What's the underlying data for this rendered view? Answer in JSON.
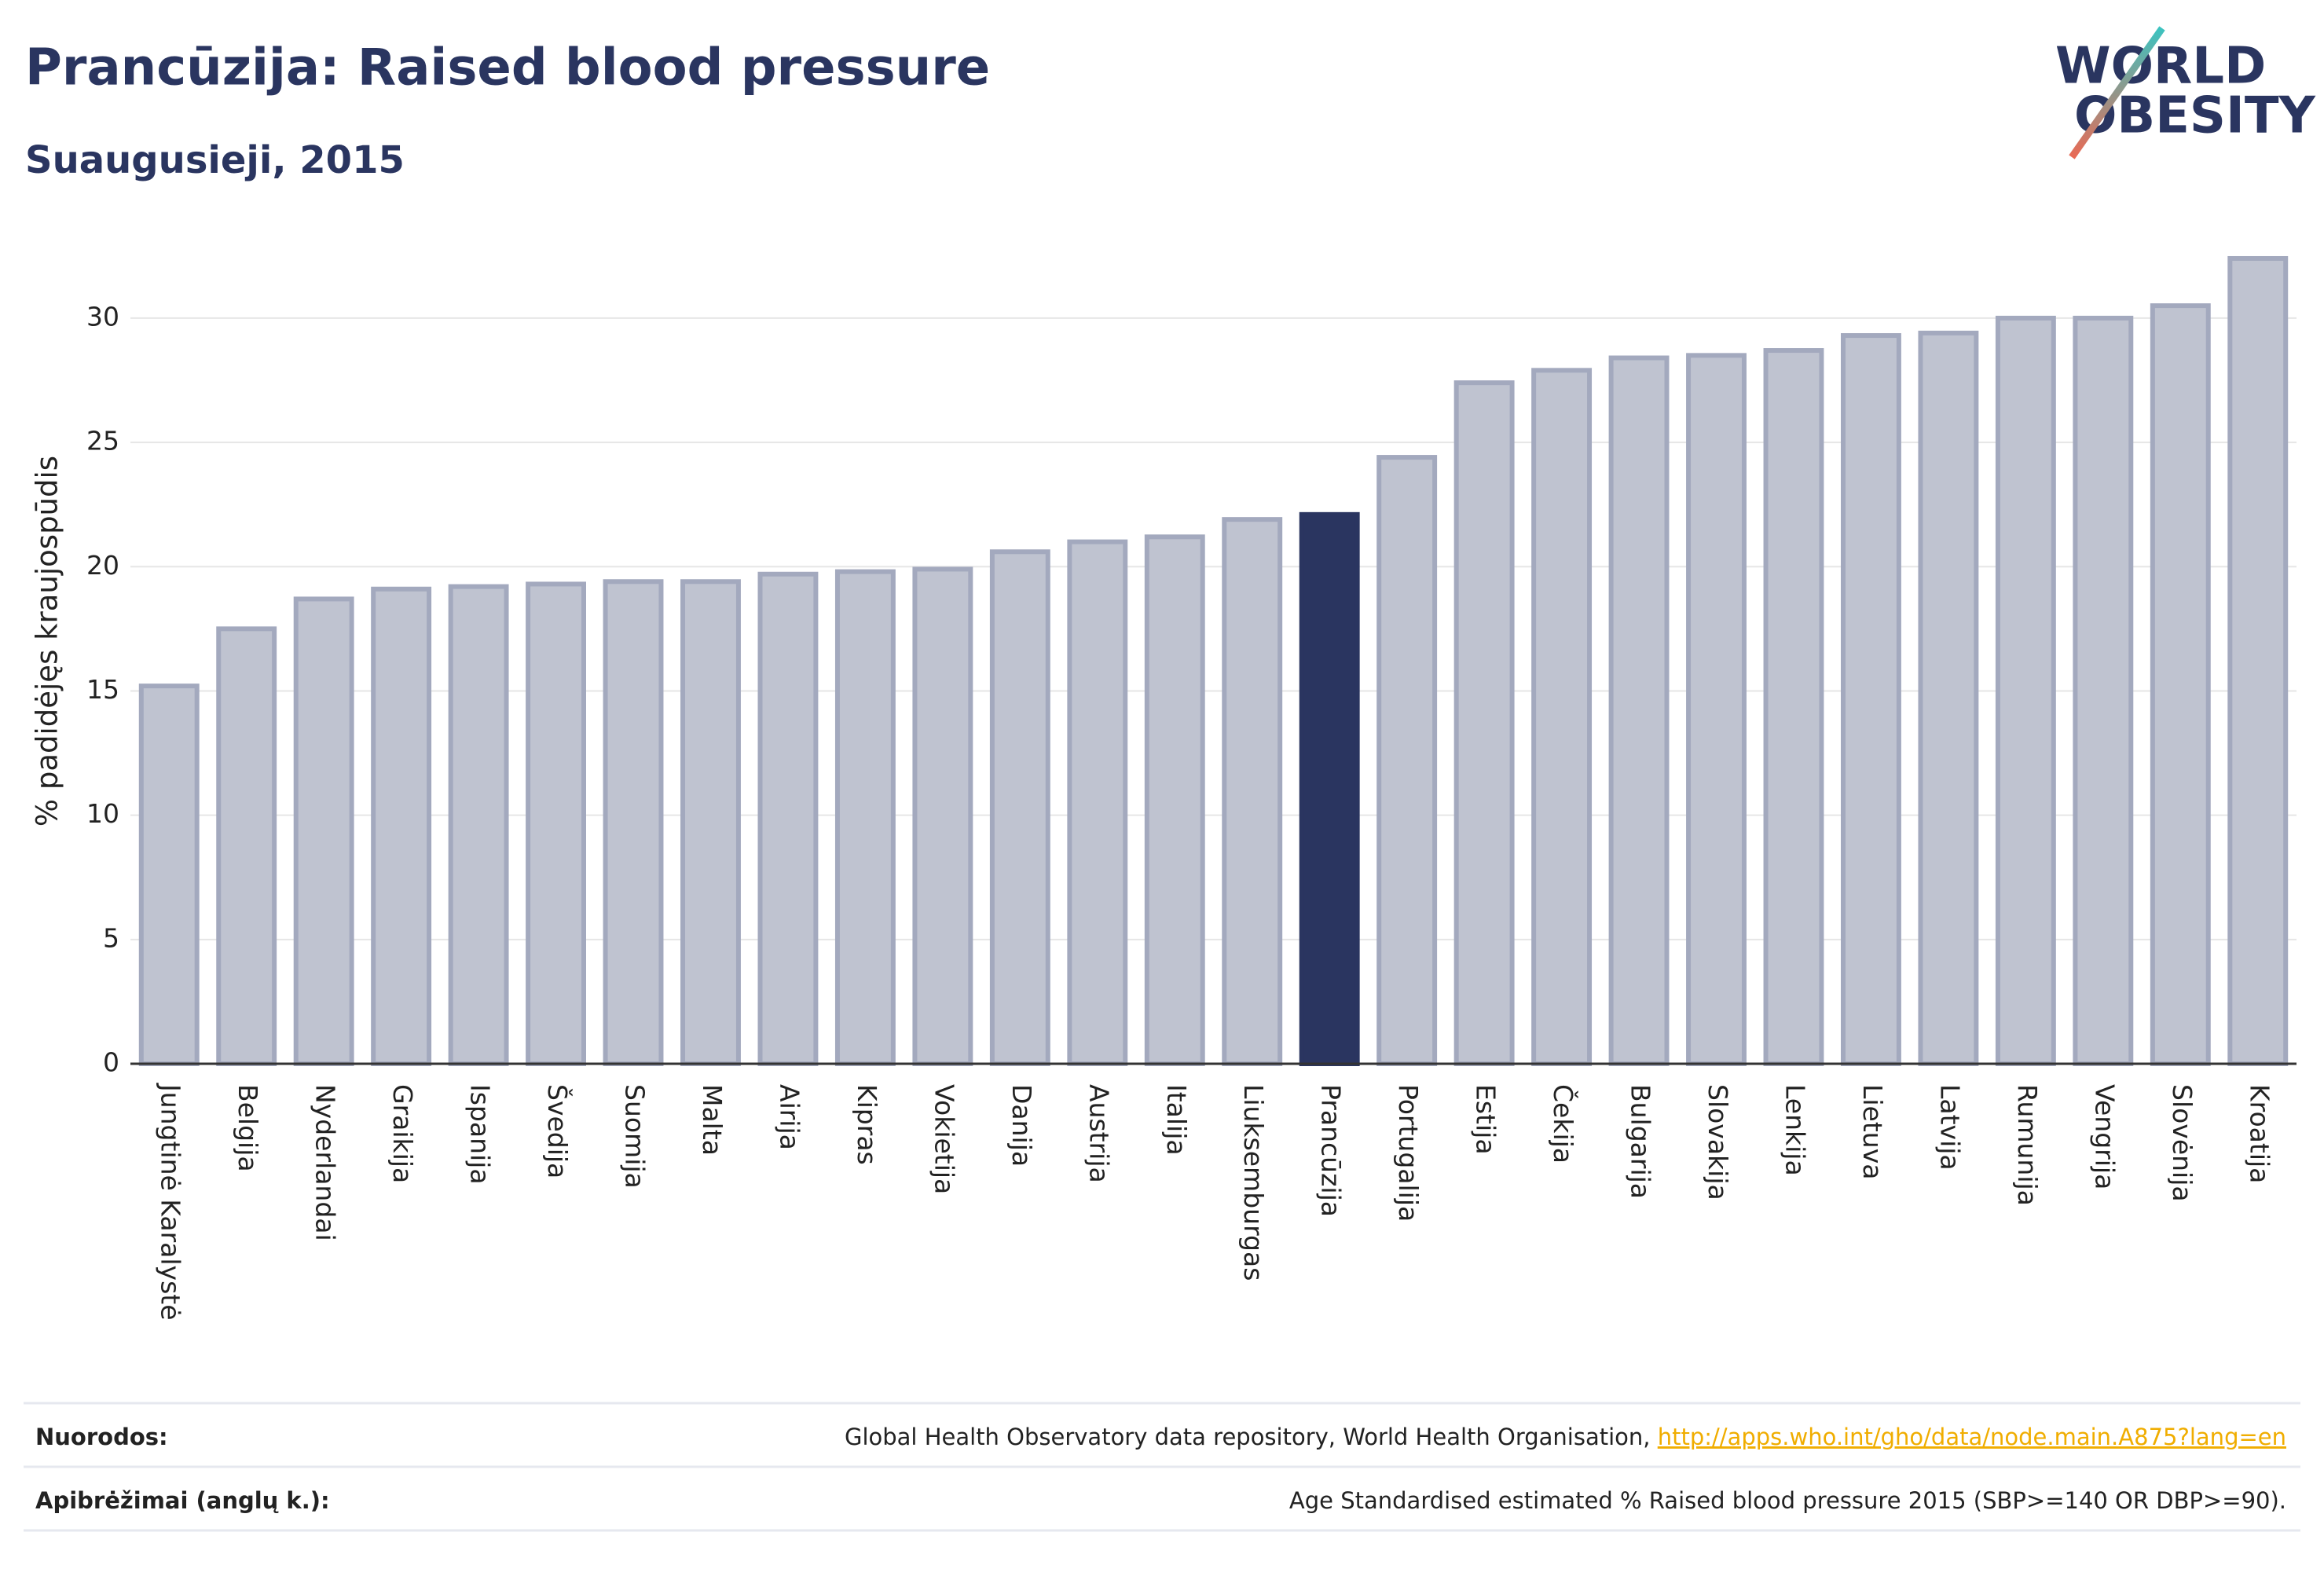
{
  "chart_data": {
    "type": "bar",
    "title": "Prancūzija: Raised blood pressure",
    "subtitle": "Suaugusieji, 2015",
    "logo": [
      "WORLD",
      "OBESITY"
    ],
    "ylabel": "% padidėjęs kraujospūdis",
    "categories": [
      "Jungtinė Karalystė",
      "Belgija",
      "Nyderlandai",
      "Graikija",
      "Ispanija",
      "Švedija",
      "Suomija",
      "Malta",
      "Airija",
      "Kipras",
      "Vokietija",
      "Danija",
      "Austrija",
      "Italija",
      "Liuksemburgas",
      "Prancūzija",
      "Portugalija",
      "Estija",
      "Čekija",
      "Bulgarija",
      "Slovakija",
      "Lenkija",
      "Lietuva",
      "Latvija",
      "Rumunija",
      "Vengrija",
      "Slovėnija",
      "Kroatija"
    ],
    "values": [
      15.2,
      17.5,
      18.7,
      19.1,
      19.2,
      19.3,
      19.4,
      19.4,
      19.7,
      19.8,
      19.9,
      20.6,
      21.0,
      21.2,
      21.9,
      22.1,
      24.4,
      27.4,
      27.9,
      28.4,
      28.5,
      28.7,
      29.3,
      29.4,
      30.0,
      30.0,
      30.5,
      32.4
    ],
    "color": "#bfc3d0",
    "edge_color": "#a3a9be",
    "highlight": {
      "category": "Prancūzija",
      "color": "#2a3560"
    },
    "ylim": [
      0,
      33
    ],
    "yticks": [
      0,
      5,
      10,
      15,
      20,
      25,
      30
    ],
    "grid": true,
    "footer": {
      "sources_label": "Nuorodos:",
      "sources_text": "Global Health Observatory data repository, World Health Organisation, ",
      "sources_link": "http://apps.who.int/gho/data/node.main.A875?lang=en",
      "definitions_label": "Apibrėžimai (anglų k.):",
      "definitions_text": "Age Standardised estimated % Raised blood pressure 2015 (SBP>=140 OR DBP>=90)."
    }
  }
}
